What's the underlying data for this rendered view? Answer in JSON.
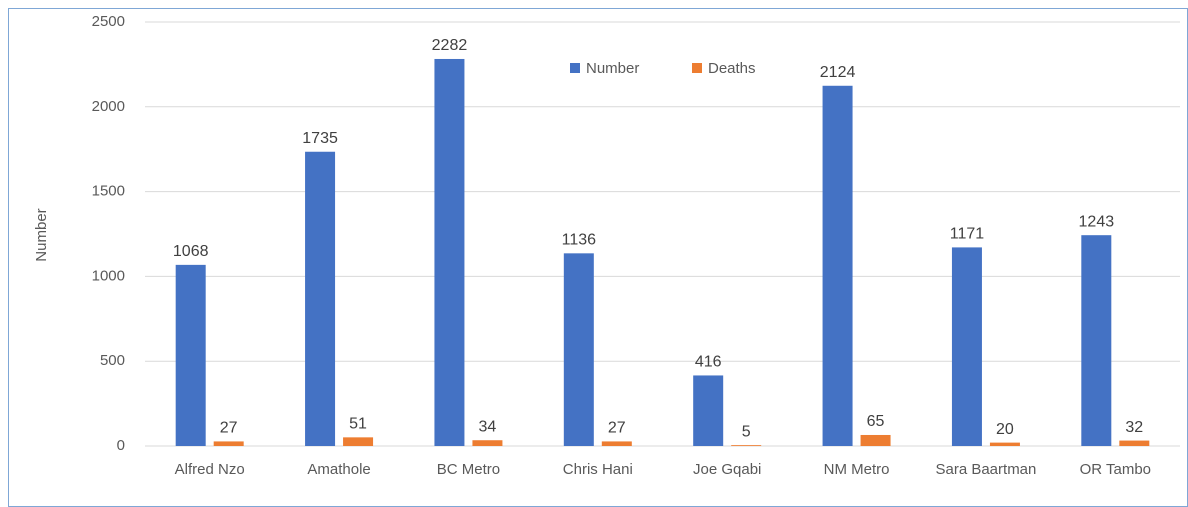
{
  "chart_data": {
    "type": "bar",
    "y_label": "Number",
    "categories": [
      "Alfred Nzo",
      "Amathole",
      "BC Metro",
      "Chris Hani",
      "Joe Gqabi",
      "NM Metro",
      "Sara Baartman",
      "OR Tambo"
    ],
    "series": [
      {
        "name": "Number",
        "color": "#4472c4",
        "values": [
          1068,
          1735,
          2282,
          1136,
          416,
          2124,
          1171,
          1243
        ]
      },
      {
        "name": "Deaths",
        "color": "#ed7d31",
        "values": [
          27,
          51,
          34,
          27,
          5,
          65,
          20,
          32
        ]
      }
    ],
    "ylim": [
      0,
      2500
    ],
    "yticks": [
      0,
      500,
      1000,
      1500,
      2000,
      2500
    ],
    "grid": true
  }
}
